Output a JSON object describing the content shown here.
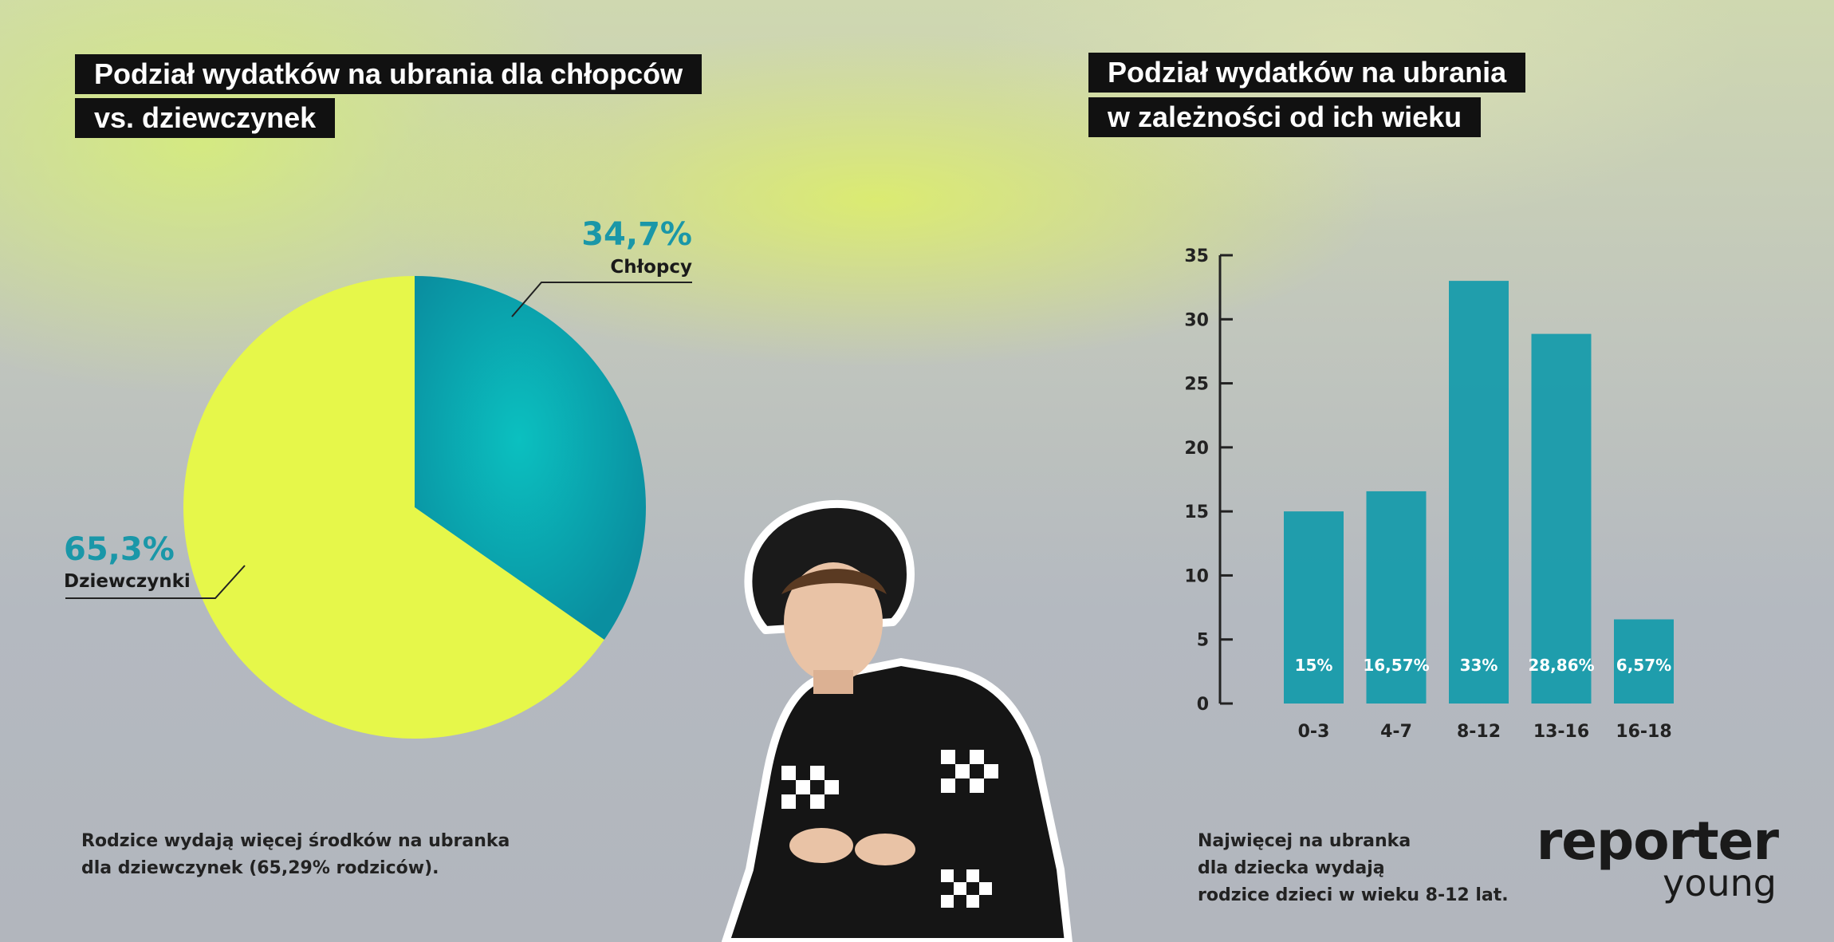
{
  "left": {
    "title_line1": "Podział wydatków na ubrania dla chłopców",
    "title_line2": "vs. dziewczynek",
    "note": "Rodzice wydają więcej środków na ubranka\ndla dziewczynek (65,29% rodziców)."
  },
  "right": {
    "title_line1": "Podział wydatków na ubrania",
    "title_line2": "w zależności od ich wieku",
    "note": "Najwięcej na ubranka\ndla dziecka wydają\nrodzice dzieci w wieku 8-12 lat."
  },
  "logo": {
    "line1": "reporter",
    "line2": "young"
  },
  "colors": {
    "teal": "#129aaa",
    "yellow": "#e6f74a",
    "dark": "#111111"
  },
  "chart_data": [
    {
      "type": "pie",
      "title": "Podział wydatków na ubrania dla chłopców vs. dziewczynek",
      "slices": [
        {
          "label": "Chłopcy",
          "value": 34.7,
          "display": "34,7%",
          "color": "#129aaa"
        },
        {
          "label": "Dziewczynki",
          "value": 65.3,
          "display": "65,3%",
          "color": "#e6f74a"
        }
      ]
    },
    {
      "type": "bar",
      "title": "Podział wydatków na ubrania w zależności od ich wieku",
      "categories": [
        "0-3",
        "4-7",
        "8-12",
        "13-16",
        "16-18"
      ],
      "values": [
        15,
        16.57,
        33,
        28.86,
        6.57
      ],
      "data_labels": [
        "15%",
        "16,57%",
        "33%",
        "28,86%",
        "6,57%"
      ],
      "yticks": [
        0,
        5,
        10,
        15,
        20,
        25,
        30,
        35
      ],
      "ylim": [
        0,
        35
      ],
      "grid": false,
      "color": "#129aaa"
    }
  ]
}
